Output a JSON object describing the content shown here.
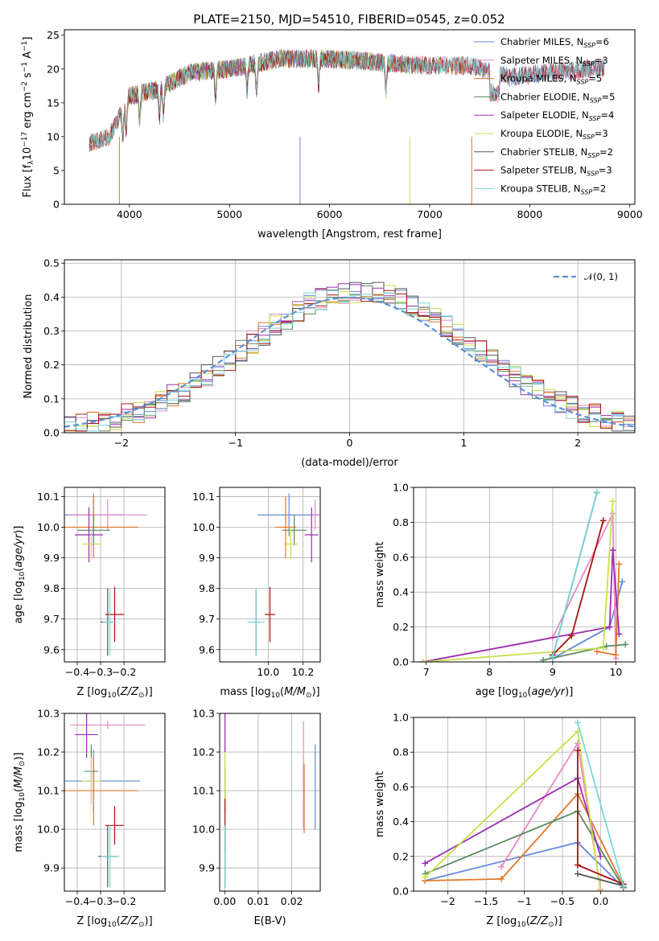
{
  "title": "PLATE=2150, MJD=54510, FIBERID=0545, z=0.052",
  "colors": [
    "#6688dd",
    "#e889c3",
    "#e07a2a",
    "#5a8a5e",
    "#9a2eb0",
    "#c8e04a",
    "#555555",
    "#aa1111",
    "#7ad8d8"
  ],
  "chart_data": [
    {
      "type": "line",
      "name": "spectrum",
      "xlabel": "wavelength [Angstrom, rest frame]",
      "ylabel": "Flux [f_λ10^-17 erg cm^-2 s^-1 A^-1]",
      "xlim": [
        3350,
        9050
      ],
      "ylim": [
        0,
        25.8
      ],
      "xticks": [
        4000,
        5000,
        6000,
        7000,
        8000,
        9000
      ],
      "yticks": [
        0,
        5,
        10,
        15,
        20,
        25
      ],
      "grid": false,
      "legend_position": "top-right",
      "continuum": {
        "x": [
          3600,
          3800,
          4000,
          4300,
          4600,
          5000,
          5500,
          6000,
          6500,
          7000,
          7400,
          7800,
          8200,
          8700
        ],
        "y": [
          9,
          10,
          16,
          17,
          19.5,
          20,
          21.5,
          21.5,
          21,
          20.5,
          20.5,
          18.8,
          19.5,
          20.2
        ]
      },
      "series": [
        {
          "name": "Chabrier MILES, N",
          "sub": "SSP",
          "suffix": "=6",
          "range": [
            3600,
            8750
          ]
        },
        {
          "name": "Salpeter MILES, N",
          "sub": "SSP",
          "suffix": "=3",
          "range": [
            3600,
            8750
          ]
        },
        {
          "name": "Kroupa MILES, N",
          "sub": "SSP",
          "suffix": "=5",
          "range": [
            3600,
            7420
          ]
        },
        {
          "name": "Chabrier ELODIE, N",
          "sub": "SSP",
          "suffix": "=5",
          "range": [
            3900,
            6800
          ]
        },
        {
          "name": "Salpeter ELODIE, N",
          "sub": "SSP",
          "suffix": "=4",
          "range": [
            3900,
            6800
          ]
        },
        {
          "name": "Kroupa ELODIE, N",
          "sub": "SSP",
          "suffix": "=3",
          "range": [
            3900,
            6800
          ]
        },
        {
          "name": "Chabrier STELIB, N",
          "sub": "SSP",
          "suffix": "=2",
          "range": [
            3600,
            8750
          ]
        },
        {
          "name": "Salpeter STELIB, N",
          "sub": "SSP",
          "suffix": "=3",
          "range": [
            3600,
            8750
          ]
        },
        {
          "name": "Kroupa STELIB, N",
          "sub": "SSP",
          "suffix": "=2",
          "range": [
            3600,
            8750
          ]
        }
      ]
    },
    {
      "type": "histogram",
      "name": "residuals",
      "xlabel": "(data-model)/error",
      "ylabel": "Normed distribution",
      "xlim": [
        -2.5,
        2.5
      ],
      "ylim": [
        0,
        0.51
      ],
      "xticks": [
        -2,
        -1,
        0,
        1,
        2
      ],
      "yticks": [
        0.0,
        0.1,
        0.2,
        0.3,
        0.4,
        0.5
      ],
      "grid": true,
      "bin_width": 0.1,
      "legend": "𝒩(0, 1)",
      "legend_position": "top-right",
      "curve": "normal pdf, mean 0, sd 1",
      "series_noise_amplitude": 0.035
    },
    {
      "type": "scatter",
      "name": "age-vs-Z",
      "xlabel": "Z [log10(Z/Z⊙)]",
      "ylabel": "age  [log10(age/yr)]",
      "xlim": [
        -0.455,
        -0.025
      ],
      "ylim": [
        9.56,
        10.13
      ],
      "xticks": [
        -0.4,
        -0.3,
        -0.2
      ],
      "yticks": [
        9.6,
        9.7,
        9.8,
        9.9,
        10.0,
        10.1
      ],
      "grid": true,
      "points": [
        {
          "x": -0.33,
          "y": 10.04,
          "xerr": 0.13,
          "yerr": 0.07,
          "c": 0
        },
        {
          "x": -0.27,
          "y": 10.04,
          "xerr": 0.17,
          "yerr": 0.05,
          "c": 1
        },
        {
          "x": -0.33,
          "y": 10.0,
          "xerr": 0.19,
          "yerr": 0.1,
          "c": 2
        },
        {
          "x": -0.33,
          "y": 9.99,
          "xerr": 0.07,
          "yerr": 0.05,
          "c": 3
        },
        {
          "x": -0.35,
          "y": 9.975,
          "xerr": 0.06,
          "yerr": 0.09,
          "c": 4
        },
        {
          "x": -0.34,
          "y": 9.945,
          "xerr": 0.04,
          "yerr": 0.05,
          "c": 5
        },
        {
          "x": -0.27,
          "y": 9.69,
          "xerr": 0.03,
          "yerr": 0.11,
          "c": 6
        },
        {
          "x": -0.24,
          "y": 9.715,
          "xerr": 0.04,
          "yerr": 0.09,
          "c": 7
        },
        {
          "x": -0.26,
          "y": 9.69,
          "xerr": 0.03,
          "yerr": 0.11,
          "c": 8
        }
      ]
    },
    {
      "type": "scatter",
      "name": "age-vs-mass",
      "xlabel": "mass [log10(M/M⊙)]",
      "ylabel": "",
      "xlim": [
        9.72,
        10.3
      ],
      "ylim": [
        9.56,
        10.13
      ],
      "xticks": [
        10.0,
        10.2
      ],
      "yticks": [
        9.6,
        9.7,
        9.8,
        9.9,
        10.0,
        10.1
      ],
      "grid": true,
      "points": [
        {
          "x": 10.12,
          "y": 10.04,
          "xerr": 0.18,
          "yerr": 0.07,
          "c": 0
        },
        {
          "x": 10.27,
          "y": 10.04,
          "xerr": 0.03,
          "yerr": 0.05,
          "c": 1
        },
        {
          "x": 10.1,
          "y": 10.0,
          "xerr": 0.06,
          "yerr": 0.1,
          "c": 2
        },
        {
          "x": 10.15,
          "y": 9.99,
          "xerr": 0.07,
          "yerr": 0.05,
          "c": 3
        },
        {
          "x": 10.25,
          "y": 9.975,
          "xerr": 0.04,
          "yerr": 0.09,
          "c": 4
        },
        {
          "x": 10.13,
          "y": 9.945,
          "xerr": 0.04,
          "yerr": 0.05,
          "c": 5
        },
        {
          "x": 9.93,
          "y": 9.69,
          "xerr": 0.02,
          "yerr": 0.11,
          "c": 6
        },
        {
          "x": 10.01,
          "y": 9.715,
          "xerr": 0.03,
          "yerr": 0.09,
          "c": 7
        },
        {
          "x": 9.93,
          "y": 9.69,
          "xerr": 0.05,
          "yerr": 0.11,
          "c": 8
        }
      ]
    },
    {
      "type": "line",
      "name": "massweight-vs-age",
      "xlabel": "age  [log10(age/yr)]",
      "ylabel": "mass weight",
      "xlim": [
        6.8,
        10.3
      ],
      "ylim": [
        0,
        1.0
      ],
      "xticks": [
        7,
        8,
        9,
        10
      ],
      "yticks": [
        0.0,
        0.2,
        0.4,
        0.6,
        0.8,
        1.0
      ],
      "grid": true,
      "series": [
        {
          "c": 0,
          "x": [
            9.0,
            9.9,
            10.1
          ],
          "y": [
            0.02,
            0.2,
            0.46
          ]
        },
        {
          "c": 1,
          "x": [
            6.95,
            9.0,
            9.95,
            10.0
          ],
          "y": [
            0.0,
            0.14,
            0.85,
            0.02
          ]
        },
        {
          "c": 2,
          "x": [
            9.7,
            10.0,
            10.05
          ],
          "y": [
            0.06,
            0.04,
            0.56
          ]
        },
        {
          "c": 3,
          "x": [
            8.85,
            9.85,
            10.15
          ],
          "y": [
            0.01,
            0.09,
            0.1
          ]
        },
        {
          "c": 4,
          "x": [
            6.95,
            9.9,
            9.95,
            10.05
          ],
          "y": [
            0.0,
            0.2,
            0.64,
            0.16
          ]
        },
        {
          "c": 5,
          "x": [
            6.95,
            9.8,
            9.95
          ],
          "y": [
            0.0,
            0.08,
            0.92
          ]
        },
        {
          "c": 6,
          "x": [
            9.0,
            9.7
          ],
          "y": [
            0.03,
            0.97
          ]
        },
        {
          "c": 7,
          "x": [
            9.0,
            9.3,
            9.8
          ],
          "y": [
            0.04,
            0.15,
            0.81
          ]
        },
        {
          "c": 8,
          "x": [
            9.0,
            9.7
          ],
          "y": [
            0.03,
            0.97
          ]
        }
      ]
    },
    {
      "type": "scatter",
      "name": "mass-vs-Z",
      "xlabel": "Z [log10(Z/Z⊙)]",
      "ylabel": "mass [log10(M/M⊙)]",
      "xlim": [
        -0.455,
        -0.025
      ],
      "ylim": [
        9.84,
        10.3
      ],
      "xticks": [
        -0.4,
        -0.3,
        -0.2
      ],
      "yticks": [
        9.9,
        10.0,
        10.1,
        10.2,
        10.3
      ],
      "grid": true,
      "points": [
        {
          "x": -0.33,
          "y": 10.125,
          "xerr": 0.2,
          "yerr": 0.08,
          "c": 0
        },
        {
          "x": -0.27,
          "y": 10.27,
          "xerr": 0.16,
          "yerr": 0.01,
          "c": 1
        },
        {
          "x": -0.33,
          "y": 10.1,
          "xerr": 0.19,
          "yerr": 0.09,
          "c": 2
        },
        {
          "x": -0.34,
          "y": 10.15,
          "xerr": 0.03,
          "yerr": 0.07,
          "c": 3
        },
        {
          "x": -0.36,
          "y": 10.245,
          "xerr": 0.05,
          "yerr": 0.06,
          "c": 4
        },
        {
          "x": -0.34,
          "y": 10.125,
          "xerr": 0.04,
          "yerr": 0.06,
          "c": 5
        },
        {
          "x": -0.27,
          "y": 9.93,
          "xerr": 0.04,
          "yerr": 0.08,
          "c": 6
        },
        {
          "x": -0.24,
          "y": 10.01,
          "xerr": 0.04,
          "yerr": 0.05,
          "c": 7
        },
        {
          "x": -0.26,
          "y": 9.93,
          "xerr": 0.04,
          "yerr": 0.08,
          "c": 8
        }
      ]
    },
    {
      "type": "scatter",
      "name": "mass-vs-EBV",
      "xlabel": "E(B-V)",
      "ylabel": "",
      "xlim": [
        -0.0015,
        0.0285
      ],
      "ylim": [
        9.84,
        10.3
      ],
      "xticks": [
        0.0,
        0.01,
        0.02
      ],
      "yticks": [
        9.9,
        10.0,
        10.1,
        10.2,
        10.3
      ],
      "grid": true,
      "points": [
        {
          "x": 0.027,
          "y": 10.11,
          "xerr": 0.0,
          "yerr": 0.11,
          "c": 0
        },
        {
          "x": 0.0235,
          "y": 10.14,
          "xerr": 0.0,
          "yerr": 0.14,
          "c": 1
        },
        {
          "x": 0.0237,
          "y": 10.08,
          "xerr": 0.0,
          "yerr": 0.09,
          "c": 2
        },
        {
          "x": 0.0001,
          "y": 10.1,
          "xerr": 0.0,
          "yerr": 0.06,
          "c": 3
        },
        {
          "x": 0.0001,
          "y": 10.25,
          "xerr": 0.0,
          "yerr": 0.05,
          "c": 4
        },
        {
          "x": 0.0001,
          "y": 10.13,
          "xerr": 0.0,
          "yerr": 0.07,
          "c": 5
        },
        {
          "x": 0.0001,
          "y": 9.93,
          "xerr": 0.0,
          "yerr": 0.08,
          "c": 6
        },
        {
          "x": 0.0001,
          "y": 10.01,
          "xerr": 0.0,
          "yerr": 0.07,
          "c": 7
        },
        {
          "x": 0.0001,
          "y": 9.93,
          "xerr": 0.0,
          "yerr": 0.08,
          "c": 8
        }
      ]
    },
    {
      "type": "line",
      "name": "massweight-vs-Z",
      "xlabel": "Z [log10(Z/Z⊙)]",
      "ylabel": "mass weight",
      "xlim": [
        -2.45,
        0.45
      ],
      "ylim": [
        0,
        1.0
      ],
      "xticks": [
        -2.0,
        -1.5,
        -1.0,
        -0.5,
        0.0
      ],
      "yticks": [
        0.0,
        0.2,
        0.4,
        0.6,
        0.8,
        1.0
      ],
      "grid": true,
      "series": [
        {
          "c": 0,
          "x": [
            -2.3,
            -0.3,
            0.3
          ],
          "y": [
            0.06,
            0.28,
            0.02
          ]
        },
        {
          "c": 1,
          "x": [
            -1.3,
            -0.3,
            0.0
          ],
          "y": [
            0.14,
            0.85,
            0.01
          ]
        },
        {
          "c": 2,
          "x": [
            -2.3,
            -1.3,
            -0.3,
            0.3
          ],
          "y": [
            0.06,
            0.07,
            0.56,
            0.03
          ]
        },
        {
          "c": 3,
          "x": [
            -2.3,
            -0.3,
            0.3
          ],
          "y": [
            0.1,
            0.46,
            0.02
          ]
        },
        {
          "c": 4,
          "x": [
            -2.3,
            -0.3,
            0.0
          ],
          "y": [
            0.16,
            0.65,
            0.2
          ]
        },
        {
          "c": 5,
          "x": [
            -2.3,
            -0.3,
            0.0
          ],
          "y": [
            0.08,
            0.92,
            0.0
          ]
        },
        {
          "c": 6,
          "x": [
            -0.3,
            0.3
          ],
          "y": [
            0.1,
            0.03
          ]
        },
        {
          "c": 7,
          "x": [
            -0.3,
            -0.3,
            0.3
          ],
          "y": [
            0.81,
            0.15,
            0.04
          ]
        },
        {
          "c": 8,
          "x": [
            -0.3,
            0.3
          ],
          "y": [
            0.97,
            0.03
          ]
        }
      ]
    }
  ]
}
